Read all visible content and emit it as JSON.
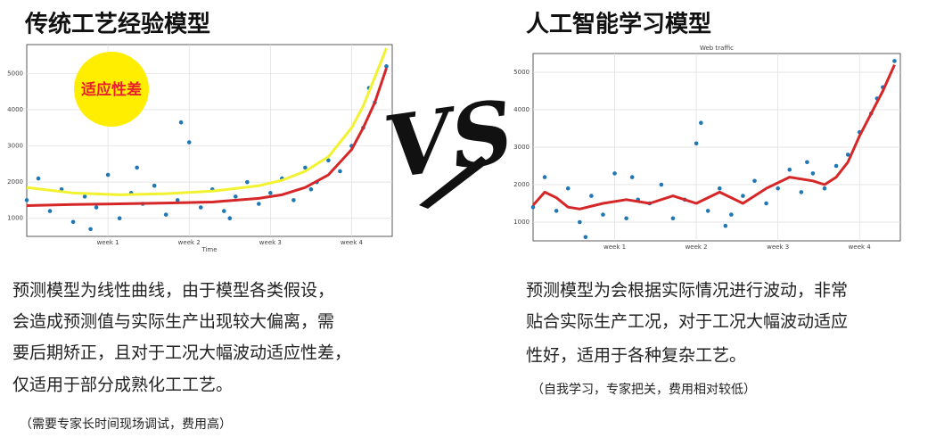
{
  "left": {
    "title": "传统工艺经验模型",
    "badge": "适应性差",
    "description": [
      "预测模型为线性曲线，由于模型各类假设，",
      "会造成预测值与实际生产出现较大偏离，需",
      "要后期矫正，且对于工况大幅波动适应性差，",
      "仅适用于部分成熟化工工艺。"
    ],
    "note": "（需要专家长时间现场调试，费用高）"
  },
  "vs": "VS",
  "right": {
    "title": "人工智能学习模型",
    "description": [
      "预测模型为会根据实际情况进行波动，非常",
      "贴合实际生产工况，对于工况大幅波动适应",
      "性好，适用于各种复杂工艺。"
    ],
    "note": "（自我学习，专家把关，费用相对较低）"
  },
  "chart_data": [
    {
      "type": "scatter",
      "x_label": "Time",
      "xlim": [
        0,
        31.5
      ],
      "ylim": [
        500,
        5800
      ],
      "xticks": [
        {
          "value": 7,
          "label": "week 1"
        },
        {
          "value": 14,
          "label": "week 2"
        },
        {
          "value": 21,
          "label": "week 3"
        },
        {
          "value": 28,
          "label": "week 4"
        }
      ],
      "yticks": [
        1000,
        2000,
        3000,
        4000,
        5000
      ],
      "grid": true,
      "series": [
        {
          "type": "scatter",
          "color": "#1f77b4",
          "x": [
            0,
            1,
            2,
            3,
            4,
            5,
            6,
            7,
            8,
            9,
            10,
            11,
            12,
            13,
            13.3,
            14,
            15,
            16,
            17,
            18,
            19,
            20,
            21,
            22,
            23,
            24,
            25,
            26,
            27,
            28,
            29,
            30,
            31,
            5.5,
            9.5,
            17.5,
            24.5,
            29.5
          ],
          "values": [
            1500,
            2100,
            1200,
            1800,
            900,
            1600,
            1300,
            2200,
            1000,
            1700,
            1400,
            1900,
            1100,
            1500,
            3650,
            3100,
            1300,
            1800,
            1200,
            1600,
            2000,
            1400,
            1700,
            2100,
            1500,
            2400,
            2000,
            2600,
            2300,
            3000,
            3500,
            4200,
            5200,
            700,
            2400,
            1000,
            1800,
            4600
          ]
        },
        {
          "type": "line",
          "color": "#f2f230",
          "x": [
            0,
            4,
            8,
            12,
            16,
            20,
            22,
            24,
            26,
            28,
            29,
            30,
            31
          ],
          "values": [
            1850,
            1700,
            1650,
            1680,
            1750,
            1900,
            2050,
            2300,
            2700,
            3500,
            4100,
            4900,
            5700
          ]
        },
        {
          "type": "line",
          "color": "#d62728",
          "x": [
            0,
            4,
            8,
            12,
            16,
            20,
            22,
            24,
            26,
            28,
            29,
            30,
            31
          ],
          "values": [
            1350,
            1380,
            1400,
            1420,
            1450,
            1550,
            1650,
            1850,
            2200,
            2900,
            3500,
            4200,
            5150
          ]
        }
      ]
    },
    {
      "type": "scatter",
      "title": "Web traffic",
      "xlim": [
        0,
        31.5
      ],
      "ylim": [
        500,
        5500
      ],
      "xticks": [
        {
          "value": 7,
          "label": "week 1"
        },
        {
          "value": 14,
          "label": "week 2"
        },
        {
          "value": 21,
          "label": "week 3"
        },
        {
          "value": 28,
          "label": "week 4"
        }
      ],
      "yticks": [
        1000,
        2000,
        3000,
        4000,
        5000
      ],
      "grid": true,
      "series": [
        {
          "type": "scatter",
          "color": "#1f77b4",
          "x": [
            0,
            1,
            2,
            3,
            4,
            5,
            6,
            7,
            8,
            9,
            10,
            11,
            12,
            13,
            14,
            14.4,
            15,
            16,
            17,
            18,
            19,
            20,
            21,
            22,
            23,
            24,
            25,
            26,
            27,
            28,
            29,
            30,
            31,
            4.5,
            8.5,
            16.5,
            23.5,
            29.5
          ],
          "values": [
            1400,
            2200,
            1300,
            1900,
            1000,
            1700,
            1200,
            2300,
            1100,
            1600,
            1500,
            2000,
            1100,
            1600,
            3100,
            3650,
            1300,
            1900,
            1200,
            1700,
            2100,
            1500,
            1900,
            2400,
            1800,
            2300,
            1900,
            2500,
            2800,
            3400,
            3900,
            4600,
            5300,
            600,
            2200,
            900,
            2600,
            4300
          ]
        },
        {
          "type": "line",
          "color": "#d62728",
          "x": [
            0,
            1,
            2,
            3,
            4,
            6,
            8,
            10,
            12,
            14,
            16,
            18,
            20,
            22,
            24,
            25,
            26,
            27,
            28,
            29,
            30,
            31
          ],
          "values": [
            1450,
            1800,
            1650,
            1400,
            1350,
            1500,
            1600,
            1500,
            1700,
            1500,
            1800,
            1500,
            1900,
            2200,
            2100,
            2000,
            2200,
            2600,
            3300,
            3900,
            4500,
            5200
          ]
        }
      ]
    }
  ]
}
